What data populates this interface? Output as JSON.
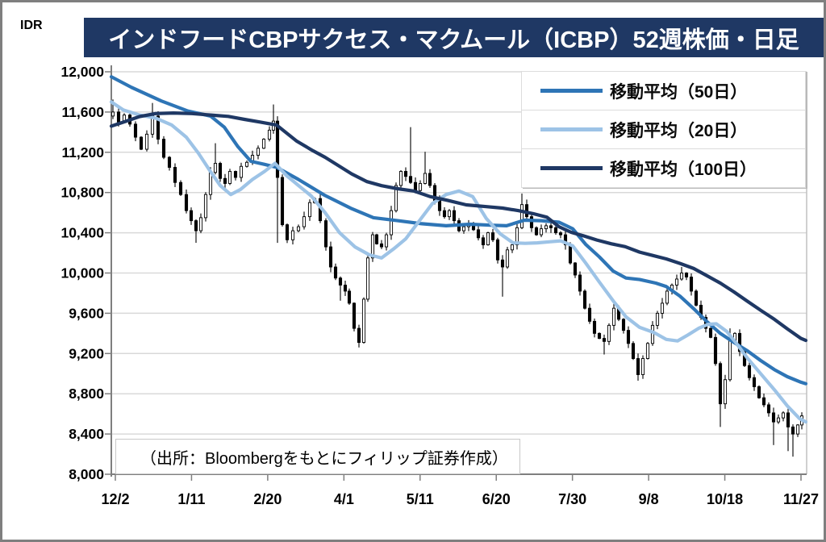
{
  "window": {
    "title": "インドフードCBPサクセス・マクムール（ICBP）52週株価・日足"
  },
  "axis_unit_label": "IDR",
  "source_note": "（出所：Bloombergをもとにフィリップ証券作成）",
  "colors": {
    "banner_bg": "#1F3864",
    "banner_text": "#FFFFFF",
    "gridline": "#D9D9D9",
    "axis": "#7F7F7F",
    "plot_right_border": "#C0C0C0",
    "candle_up_fill": "#FFFFFF",
    "candle_down_fill": "#000000",
    "candle_stroke": "#000000"
  },
  "legend": {
    "items": [
      {
        "label": "移動平均（50日）",
        "color": "#2E75B6"
      },
      {
        "label": "移動平均（20日）",
        "color": "#9DC3E6"
      },
      {
        "label": "移動平均（100日）",
        "color": "#1F3864"
      }
    ]
  },
  "chart_data": {
    "type": "candlestick",
    "title": "インドフードCBPサクセス・マクムール（ICBP）52週株価・日足",
    "ylabel": "IDR",
    "xlabel": "",
    "grid": "horizontal",
    "legend_position": "top-right",
    "y_axis": {
      "min": 8000,
      "max": 12000,
      "step": 400,
      "tick_labels": [
        "12,000",
        "11,600",
        "11,200",
        "10,800",
        "10,400",
        "10,000",
        "9,600",
        "9,200",
        "8,800",
        "8,400",
        "8,000"
      ]
    },
    "x_axis": {
      "note": "daily candles, 52 weeks; x values below are plot positions where 135=12/2 and 990=11/27",
      "tick_labels": [
        "12/2",
        "1/11",
        "2/20",
        "4/1",
        "5/11",
        "6/20",
        "7/30",
        "9/8",
        "10/18",
        "11/27"
      ]
    },
    "candles_close": [
      [
        137,
        11600
      ],
      [
        144,
        11500
      ],
      [
        151,
        11570
      ],
      [
        158,
        11480
      ],
      [
        165,
        11350
      ],
      [
        172,
        11230
      ],
      [
        179,
        11380
      ],
      [
        186,
        11560
      ],
      [
        193,
        11330
      ],
      [
        200,
        11150
      ],
      [
        207,
        11050
      ],
      [
        214,
        10900
      ],
      [
        221,
        10780
      ],
      [
        228,
        10620
      ],
      [
        234,
        10520
      ],
      [
        240,
        10420
      ],
      [
        246,
        10550
      ],
      [
        252,
        10780
      ],
      [
        258,
        11000
      ],
      [
        264,
        11090
      ],
      [
        270,
        10940
      ],
      [
        276,
        10890
      ],
      [
        282,
        11010
      ],
      [
        289,
        10950
      ],
      [
        296,
        11060
      ],
      [
        303,
        11100
      ],
      [
        310,
        11170
      ],
      [
        317,
        11240
      ],
      [
        324,
        11330
      ],
      [
        331,
        11420
      ],
      [
        336,
        11510
      ],
      [
        341,
        10950
      ],
      [
        347,
        10480
      ],
      [
        353,
        10330
      ],
      [
        360,
        10420
      ],
      [
        367,
        10460
      ],
      [
        374,
        10560
      ],
      [
        381,
        10700
      ],
      [
        387,
        10740
      ],
      [
        394,
        10520
      ],
      [
        401,
        10260
      ],
      [
        407,
        10060
      ],
      [
        413,
        9950
      ],
      [
        419,
        9880
      ],
      [
        425,
        9820
      ],
      [
        430,
        9700
      ],
      [
        436,
        9450
      ],
      [
        442,
        9310
      ],
      [
        448,
        9740
      ],
      [
        453,
        10150
      ],
      [
        459,
        10380
      ],
      [
        464,
        10290
      ],
      [
        470,
        10260
      ],
      [
        476,
        10380
      ],
      [
        482,
        10620
      ],
      [
        488,
        10870
      ],
      [
        494,
        11010
      ],
      [
        500,
        10960
      ],
      [
        506,
        10900
      ],
      [
        512,
        10820
      ],
      [
        518,
        10890
      ],
      [
        524,
        10990
      ],
      [
        530,
        10870
      ],
      [
        536,
        10720
      ],
      [
        542,
        10620
      ],
      [
        548,
        10560
      ],
      [
        554,
        10620
      ],
      [
        560,
        10520
      ],
      [
        566,
        10420
      ],
      [
        572,
        10460
      ],
      [
        578,
        10490
      ],
      [
        584,
        10430
      ],
      [
        590,
        10350
      ],
      [
        596,
        10280
      ],
      [
        602,
        10400
      ],
      [
        608,
        10330
      ],
      [
        614,
        10130
      ],
      [
        620,
        10060
      ],
      [
        626,
        10230
      ],
      [
        632,
        10280
      ],
      [
        638,
        10450
      ],
      [
        644,
        10680
      ],
      [
        650,
        10560
      ],
      [
        656,
        10450
      ],
      [
        662,
        10380
      ],
      [
        668,
        10440
      ],
      [
        674,
        10470
      ],
      [
        680,
        10450
      ],
      [
        686,
        10400
      ],
      [
        692,
        10380
      ],
      [
        698,
        10280
      ],
      [
        704,
        10100
      ],
      [
        710,
        9980
      ],
      [
        716,
        9820
      ],
      [
        722,
        9650
      ],
      [
        728,
        9520
      ],
      [
        734,
        9400
      ],
      [
        740,
        9350
      ],
      [
        746,
        9320
      ],
      [
        752,
        9480
      ],
      [
        758,
        9650
      ],
      [
        764,
        9540
      ],
      [
        770,
        9430
      ],
      [
        776,
        9300
      ],
      [
        782,
        9150
      ],
      [
        788,
        8990
      ],
      [
        794,
        9150
      ],
      [
        800,
        9300
      ],
      [
        806,
        9480
      ],
      [
        812,
        9600
      ],
      [
        818,
        9700
      ],
      [
        824,
        9820
      ],
      [
        830,
        9880
      ],
      [
        836,
        9940
      ],
      [
        842,
        10000
      ],
      [
        848,
        9960
      ],
      [
        854,
        9820
      ],
      [
        860,
        9680
      ],
      [
        866,
        9560
      ],
      [
        872,
        9450
      ],
      [
        878,
        9360
      ],
      [
        884,
        9100
      ],
      [
        890,
        8700
      ],
      [
        896,
        8940
      ],
      [
        902,
        9330
      ],
      [
        908,
        9400
      ],
      [
        914,
        9220
      ],
      [
        920,
        9080
      ],
      [
        926,
        8960
      ],
      [
        932,
        8870
      ],
      [
        938,
        8760
      ],
      [
        944,
        8690
      ],
      [
        950,
        8610
      ],
      [
        956,
        8520
      ],
      [
        962,
        8560
      ],
      [
        968,
        8610
      ],
      [
        974,
        8470
      ],
      [
        980,
        8400
      ],
      [
        986,
        8490
      ],
      [
        991,
        8580
      ]
    ],
    "wick_overrides": [
      [
        137,
        "high",
        11725
      ],
      [
        186,
        "high",
        11690
      ],
      [
        240,
        "low",
        10300
      ],
      [
        264,
        "high",
        11290
      ],
      [
        336,
        "high",
        11675
      ],
      [
        341,
        "low",
        10300
      ],
      [
        419,
        "low",
        9725
      ],
      [
        442,
        "low",
        9260
      ],
      [
        506,
        "high",
        11450
      ],
      [
        524,
        "high",
        11205
      ],
      [
        620,
        "low",
        9765
      ],
      [
        644,
        "high",
        10790
      ],
      [
        746,
        "low",
        9190
      ],
      [
        788,
        "low",
        8930
      ],
      [
        842,
        "high",
        10060
      ],
      [
        890,
        "low",
        8470
      ],
      [
        902,
        "high",
        9450
      ],
      [
        956,
        "low",
        8290
      ],
      [
        974,
        "low",
        8230
      ],
      [
        980,
        "low",
        8175
      ]
    ],
    "series": [
      {
        "name": "移動平均（50日）",
        "color": "#2E75B6",
        "points": [
          [
            135,
            11950
          ],
          [
            160,
            11845
          ],
          [
            197,
            11710
          ],
          [
            230,
            11610
          ],
          [
            258,
            11560
          ],
          [
            275,
            11450
          ],
          [
            292,
            11255
          ],
          [
            308,
            11110
          ],
          [
            325,
            11080
          ],
          [
            340,
            11050
          ],
          [
            367,
            10930
          ],
          [
            400,
            10770
          ],
          [
            433,
            10640
          ],
          [
            460,
            10550
          ],
          [
            490,
            10520
          ],
          [
            520,
            10490
          ],
          [
            550,
            10470
          ],
          [
            580,
            10485
          ],
          [
            605,
            10475
          ],
          [
            625,
            10470
          ],
          [
            647,
            10525
          ],
          [
            668,
            10520
          ],
          [
            690,
            10505
          ],
          [
            707,
            10440
          ],
          [
            723,
            10285
          ],
          [
            740,
            10160
          ],
          [
            757,
            10020
          ],
          [
            773,
            9950
          ],
          [
            790,
            9935
          ],
          [
            810,
            9900
          ],
          [
            823,
            9865
          ],
          [
            840,
            9770
          ],
          [
            857,
            9645
          ],
          [
            873,
            9520
          ],
          [
            890,
            9400
          ],
          [
            907,
            9310
          ],
          [
            923,
            9230
          ],
          [
            940,
            9130
          ],
          [
            957,
            9040
          ],
          [
            973,
            8970
          ],
          [
            990,
            8915
          ],
          [
            996,
            8900
          ]
        ]
      },
      {
        "name": "移動平均（20日）",
        "color": "#9DC3E6",
        "points": [
          [
            135,
            11700
          ],
          [
            150,
            11620
          ],
          [
            170,
            11570
          ],
          [
            190,
            11540
          ],
          [
            210,
            11470
          ],
          [
            228,
            11350
          ],
          [
            243,
            11190
          ],
          [
            257,
            11020
          ],
          [
            270,
            10870
          ],
          [
            283,
            10780
          ],
          [
            295,
            10830
          ],
          [
            310,
            10930
          ],
          [
            325,
            11010
          ],
          [
            338,
            11090
          ],
          [
            352,
            10970
          ],
          [
            367,
            10870
          ],
          [
            383,
            10765
          ],
          [
            400,
            10600
          ],
          [
            418,
            10400
          ],
          [
            437,
            10260
          ],
          [
            455,
            10180
          ],
          [
            470,
            10150
          ],
          [
            485,
            10240
          ],
          [
            500,
            10340
          ],
          [
            517,
            10520
          ],
          [
            533,
            10690
          ],
          [
            550,
            10780
          ],
          [
            566,
            10815
          ],
          [
            583,
            10760
          ],
          [
            600,
            10540
          ],
          [
            617,
            10390
          ],
          [
            633,
            10300
          ],
          [
            648,
            10295
          ],
          [
            663,
            10300
          ],
          [
            678,
            10310
          ],
          [
            692,
            10320
          ],
          [
            707,
            10270
          ],
          [
            723,
            10100
          ],
          [
            740,
            9910
          ],
          [
            757,
            9725
          ],
          [
            773,
            9565
          ],
          [
            790,
            9460
          ],
          [
            808,
            9408
          ],
          [
            823,
            9340
          ],
          [
            837,
            9325
          ],
          [
            850,
            9385
          ],
          [
            863,
            9450
          ],
          [
            875,
            9490
          ],
          [
            885,
            9495
          ],
          [
            898,
            9420
          ],
          [
            910,
            9300
          ],
          [
            923,
            9160
          ],
          [
            940,
            9000
          ],
          [
            957,
            8840
          ],
          [
            973,
            8680
          ],
          [
            988,
            8555
          ],
          [
            996,
            8520
          ]
        ]
      },
      {
        "name": "移動平均（100日）",
        "color": "#1F3864",
        "points": [
          [
            135,
            11460
          ],
          [
            152,
            11505
          ],
          [
            170,
            11555
          ],
          [
            190,
            11585
          ],
          [
            212,
            11590
          ],
          [
            235,
            11585
          ],
          [
            258,
            11570
          ],
          [
            280,
            11557
          ],
          [
            300,
            11527
          ],
          [
            320,
            11500
          ],
          [
            340,
            11470
          ],
          [
            365,
            11310
          ],
          [
            385,
            11215
          ],
          [
            400,
            11150
          ],
          [
            420,
            11050
          ],
          [
            433,
            10985
          ],
          [
            452,
            10908
          ],
          [
            470,
            10868
          ],
          [
            490,
            10838
          ],
          [
            510,
            10815
          ],
          [
            530,
            10760
          ],
          [
            552,
            10722
          ],
          [
            575,
            10677
          ],
          [
            600,
            10660
          ],
          [
            620,
            10645
          ],
          [
            640,
            10620
          ],
          [
            658,
            10590
          ],
          [
            675,
            10555
          ],
          [
            690,
            10460
          ],
          [
            705,
            10405
          ],
          [
            720,
            10370
          ],
          [
            737,
            10328
          ],
          [
            755,
            10290
          ],
          [
            772,
            10262
          ],
          [
            790,
            10208
          ],
          [
            806,
            10175
          ],
          [
            823,
            10140
          ],
          [
            840,
            10095
          ],
          [
            857,
            10045
          ],
          [
            873,
            9975
          ],
          [
            890,
            9900
          ],
          [
            907,
            9812
          ],
          [
            923,
            9723
          ],
          [
            940,
            9630
          ],
          [
            957,
            9540
          ],
          [
            973,
            9445
          ],
          [
            990,
            9350
          ],
          [
            996,
            9330
          ]
        ]
      }
    ]
  }
}
